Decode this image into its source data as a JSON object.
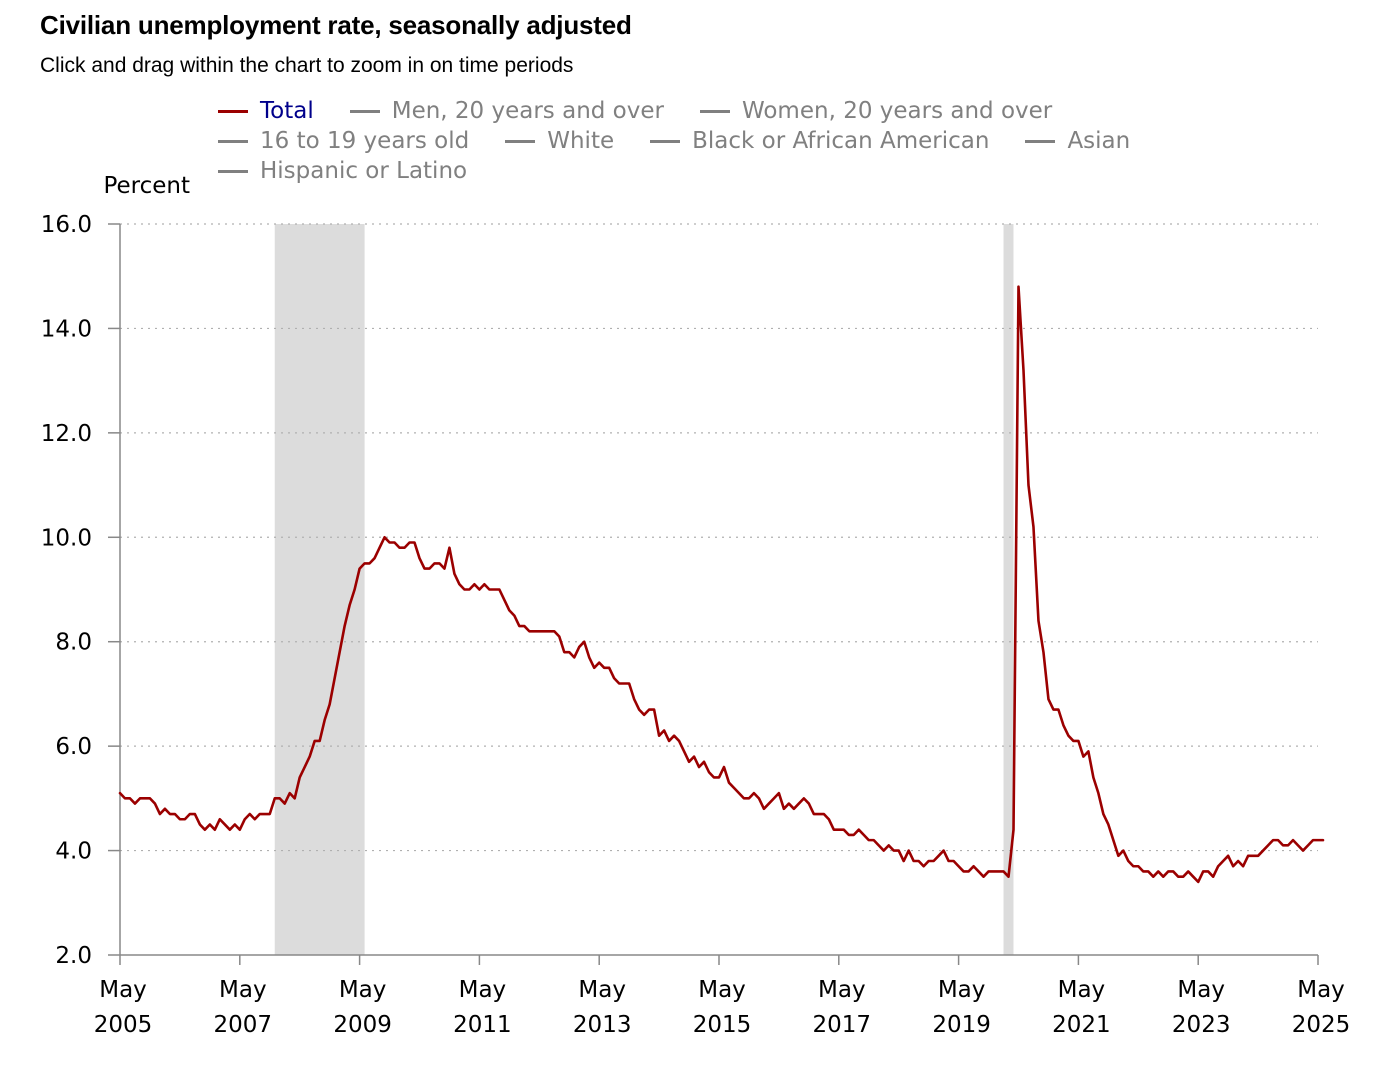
{
  "header": {
    "title": "Civilian unemployment rate, seasonally adjusted",
    "subtitle": "Click and drag within the chart to zoom in on time periods"
  },
  "legend": {
    "rows": [
      [
        {
          "label": "Total",
          "active": true
        },
        {
          "label": "Men, 20 years and over",
          "active": false
        },
        {
          "label": "Women, 20 years and over",
          "active": false
        }
      ],
      [
        {
          "label": "16 to 19 years old",
          "active": false
        },
        {
          "label": "White",
          "active": false
        },
        {
          "label": "Black or African American",
          "active": false
        },
        {
          "label": "Asian",
          "active": false
        }
      ],
      [
        {
          "label": "Hispanic or Latino",
          "active": false
        }
      ]
    ]
  },
  "colors": {
    "series": "#9b0000",
    "recession": "#dcdcdc",
    "grid": "#b0b0b0",
    "inactive": "#808080",
    "active_label": "#00008b"
  },
  "chart_data": {
    "type": "line",
    "ylabel": "Percent",
    "ylim": [
      2.0,
      16.0
    ],
    "yticks": [
      "16.0",
      "14.0",
      "12.0",
      "10.0",
      "8.0",
      "6.0",
      "4.0",
      "2.0"
    ],
    "xlim": [
      "2005-05",
      "2025-05"
    ],
    "xticks": [
      {
        "month": "May",
        "year": "2005",
        "date": "2005-05"
      },
      {
        "month": "May",
        "year": "2007",
        "date": "2007-05"
      },
      {
        "month": "May",
        "year": "2009",
        "date": "2009-05"
      },
      {
        "month": "May",
        "year": "2011",
        "date": "2011-05"
      },
      {
        "month": "May",
        "year": "2013",
        "date": "2013-05"
      },
      {
        "month": "May",
        "year": "2015",
        "date": "2015-05"
      },
      {
        "month": "May",
        "year": "2017",
        "date": "2017-05"
      },
      {
        "month": "May",
        "year": "2019",
        "date": "2019-05"
      },
      {
        "month": "May",
        "year": "2021",
        "date": "2021-05"
      },
      {
        "month": "May",
        "year": "2023",
        "date": "2023-05"
      },
      {
        "month": "May",
        "year": "2025",
        "date": "2025-05"
      }
    ],
    "grid": "horizontal dotted",
    "recessions": [
      {
        "start": "2007-12",
        "end": "2009-06"
      },
      {
        "start": "2020-02",
        "end": "2020-04"
      }
    ],
    "series": [
      {
        "name": "Total",
        "start": "2005-05",
        "frequency": "monthly",
        "values": [
          5.1,
          5.0,
          5.0,
          4.9,
          5.0,
          5.0,
          5.0,
          4.9,
          4.7,
          4.8,
          4.7,
          4.7,
          4.6,
          4.6,
          4.7,
          4.7,
          4.5,
          4.4,
          4.5,
          4.4,
          4.6,
          4.5,
          4.4,
          4.5,
          4.4,
          4.6,
          4.7,
          4.6,
          4.7,
          4.7,
          4.7,
          5.0,
          5.0,
          4.9,
          5.1,
          5.0,
          5.4,
          5.6,
          5.8,
          6.1,
          6.1,
          6.5,
          6.8,
          7.3,
          7.8,
          8.3,
          8.7,
          9.0,
          9.4,
          9.5,
          9.5,
          9.6,
          9.8,
          10.0,
          9.9,
          9.9,
          9.8,
          9.8,
          9.9,
          9.9,
          9.6,
          9.4,
          9.4,
          9.5,
          9.5,
          9.4,
          9.8,
          9.3,
          9.1,
          9.0,
          9.0,
          9.1,
          9.0,
          9.1,
          9.0,
          9.0,
          9.0,
          8.8,
          8.6,
          8.5,
          8.3,
          8.3,
          8.2,
          8.2,
          8.2,
          8.2,
          8.2,
          8.2,
          8.1,
          7.8,
          7.8,
          7.7,
          7.9,
          8.0,
          7.7,
          7.5,
          7.6,
          7.5,
          7.5,
          7.3,
          7.2,
          7.2,
          7.2,
          6.9,
          6.7,
          6.6,
          6.7,
          6.7,
          6.2,
          6.3,
          6.1,
          6.2,
          6.1,
          5.9,
          5.7,
          5.8,
          5.6,
          5.7,
          5.5,
          5.4,
          5.4,
          5.6,
          5.3,
          5.2,
          5.1,
          5.0,
          5.0,
          5.1,
          5.0,
          4.8,
          4.9,
          5.0,
          5.1,
          4.8,
          4.9,
          4.8,
          4.9,
          5.0,
          4.9,
          4.7,
          4.7,
          4.7,
          4.6,
          4.4,
          4.4,
          4.4,
          4.3,
          4.3,
          4.4,
          4.3,
          4.2,
          4.2,
          4.1,
          4.0,
          4.1,
          4.0,
          4.0,
          3.8,
          4.0,
          3.8,
          3.8,
          3.7,
          3.8,
          3.8,
          3.9,
          4.0,
          3.8,
          3.8,
          3.7,
          3.6,
          3.6,
          3.7,
          3.6,
          3.5,
          3.6,
          3.6,
          3.6,
          3.6,
          3.5,
          4.4,
          14.8,
          13.2,
          11.0,
          10.2,
          8.4,
          7.8,
          6.9,
          6.7,
          6.7,
          6.4,
          6.2,
          6.1,
          6.1,
          5.8,
          5.9,
          5.4,
          5.1,
          4.7,
          4.5,
          4.2,
          3.9,
          4.0,
          3.8,
          3.7,
          3.7,
          3.6,
          3.6,
          3.5,
          3.6,
          3.5,
          3.6,
          3.6,
          3.5,
          3.5,
          3.6,
          3.5,
          3.4,
          3.6,
          3.6,
          3.5,
          3.7,
          3.8,
          3.9,
          3.7,
          3.8,
          3.7,
          3.9,
          3.9,
          3.9,
          4.0,
          4.1,
          4.2,
          4.2,
          4.1,
          4.1,
          4.2,
          4.1,
          4.0,
          4.1,
          4.2,
          4.2,
          4.2
        ]
      }
    ]
  }
}
